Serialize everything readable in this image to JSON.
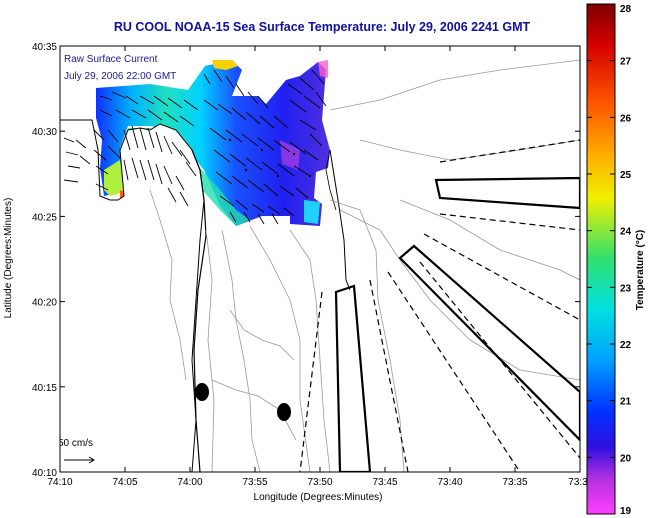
{
  "title": "RU COOL  NOAA-15  Sea Surface Temperature:  July 29, 2006 2241 GMT",
  "annotation": {
    "line1": "Raw Surface Current",
    "line2": "July 29, 2006 22:00 GMT"
  },
  "scale_label": "50 cm/s",
  "axes": {
    "xlabel": "Longitude (Degrees:Minutes)",
    "ylabel": "Latitude (Degrees:Minutes)",
    "x_ticks": [
      "74:10",
      "74:05",
      "74:00",
      "73:55",
      "73:50",
      "73:45",
      "73:40",
      "73:35",
      "73:3"
    ],
    "y_ticks": [
      "40:35",
      "40:30",
      "40:25",
      "40:20",
      "40:15",
      "40:10"
    ]
  },
  "colorbar": {
    "label": "Temperature (°C)",
    "ticks": [
      "28",
      "27",
      "26",
      "25",
      "24",
      "23",
      "22",
      "21",
      "20",
      "19"
    ],
    "min": 19,
    "max": 28
  },
  "colors": {
    "title": "#1010a0",
    "annotation": "#1a1a9a",
    "land": "#ffffff",
    "contour": "#9a9a9a"
  }
}
